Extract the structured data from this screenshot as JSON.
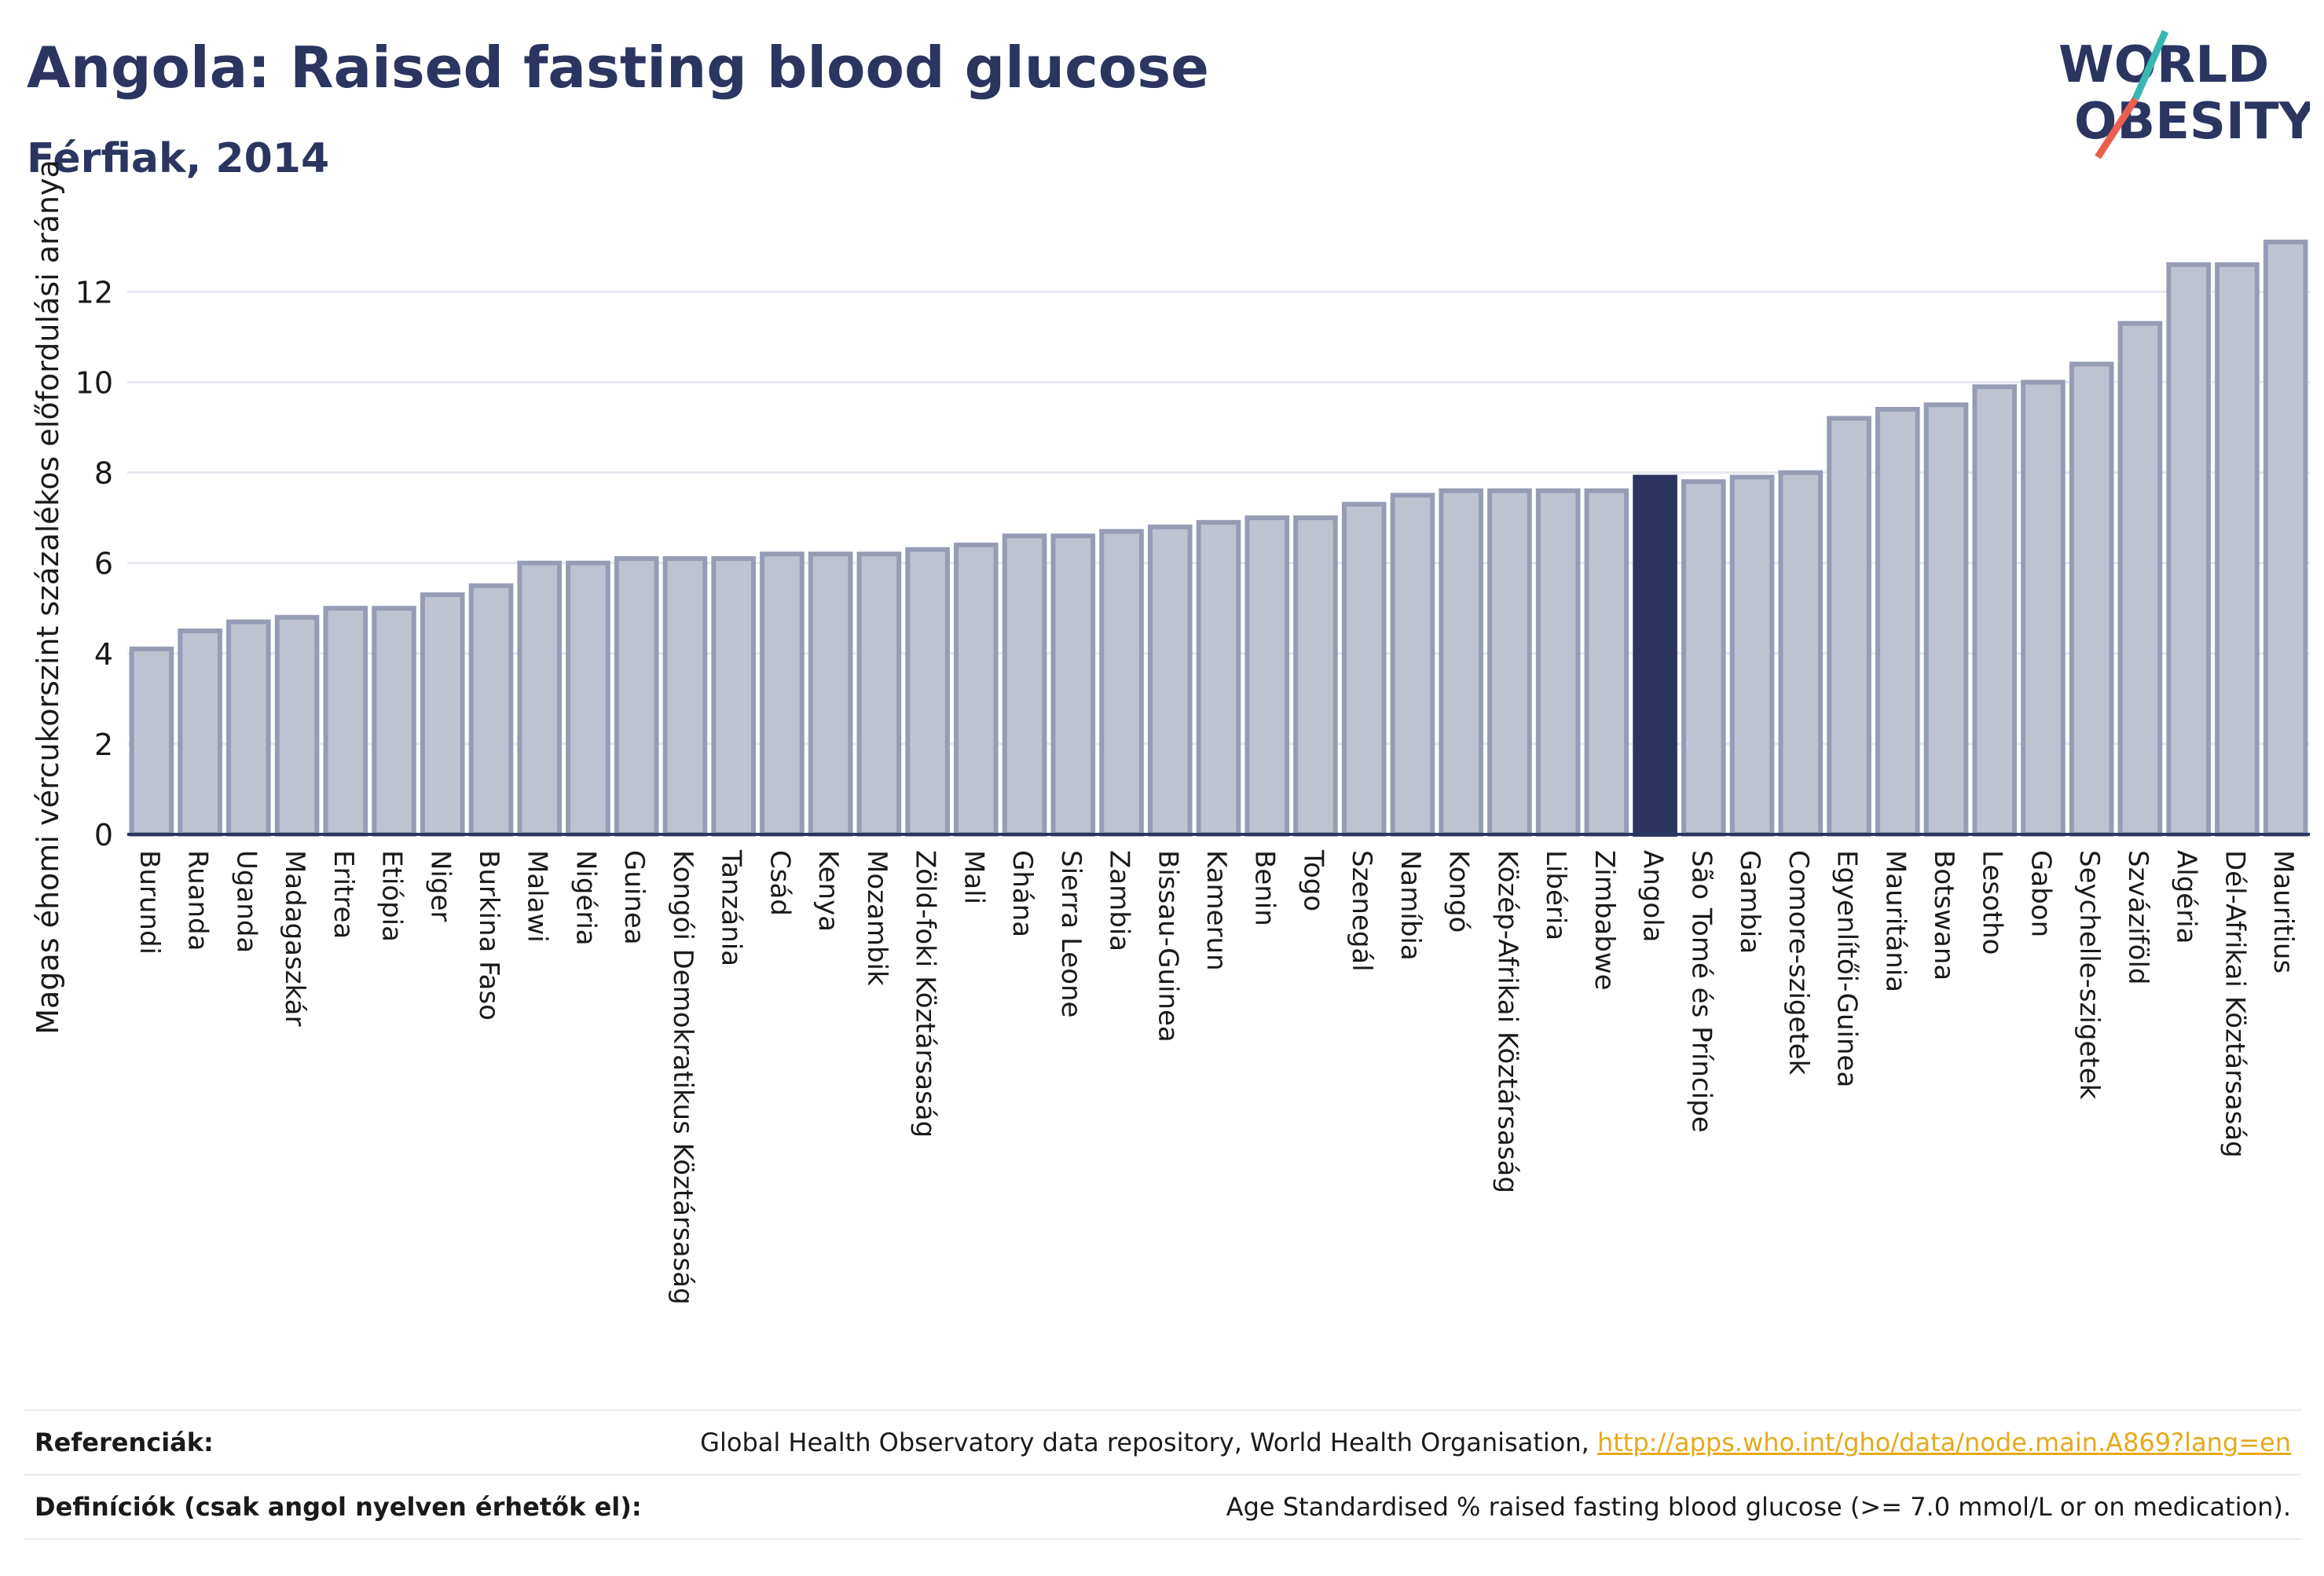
{
  "header": {
    "title": "Angola: Raised fasting blood glucose",
    "subtitle": "Férfiak, 2014"
  },
  "logo": {
    "line1": "WORLD",
    "line2": "OBESITY"
  },
  "colors": {
    "bar": "#bec2d1",
    "bar_stroke": "#969cb5",
    "highlight": "#2b3560",
    "grid": "#e6e8ef",
    "axis": "#2b3560",
    "logo_teal": "#3ab7b1",
    "logo_red": "#e8604e"
  },
  "chart_data": {
    "type": "bar",
    "ylabel": "Magas éhomi vércukorszint százalékos előfordulási aránya",
    "xlabel": "",
    "ylim": [
      0,
      13.5
    ],
    "yticks": [
      0,
      2,
      4,
      6,
      8,
      10,
      12
    ],
    "grid": true,
    "highlight": "Angola",
    "categories": [
      "Burundi",
      "Ruanda",
      "Uganda",
      "Madagaszkár",
      "Eritrea",
      "Etiópia",
      "Niger",
      "Burkina Faso",
      "Malawi",
      "Nigéria",
      "Guinea",
      "Kongói Demokratikus Köztársaság",
      "Tanzánia",
      "Csád",
      "Kenya",
      "Mozambik",
      "Zöld-foki Köztársaság",
      "Mali",
      "Ghána",
      "Sierra Leone",
      "Zambia",
      "Bissau-Guinea",
      "Kamerun",
      "Benin",
      "Togo",
      "Szenegál",
      "Namíbia",
      "Kongó",
      "Közép-Afrikai Köztársaság",
      "Libéria",
      "Zimbabwe",
      "Angola",
      "São Tomé és Príncipe",
      "Gambia",
      "Comore-szigetek",
      "Egyenlítői-Guinea",
      "Mauritánia",
      "Botswana",
      "Lesotho",
      "Gabon",
      "Seychelle-szigetek",
      "Szváziföld",
      "Algéria",
      "Dél-Afrikai Köztársaság",
      "Mauritius"
    ],
    "values": [
      4.1,
      4.5,
      4.7,
      4.8,
      5.0,
      5.0,
      5.3,
      5.5,
      6.0,
      6.0,
      6.1,
      6.1,
      6.1,
      6.2,
      6.2,
      6.2,
      6.3,
      6.4,
      6.6,
      6.6,
      6.7,
      6.8,
      6.9,
      7.0,
      7.0,
      7.3,
      7.5,
      7.6,
      7.6,
      7.6,
      7.6,
      7.9,
      7.8,
      7.9,
      8.0,
      9.2,
      9.4,
      9.5,
      9.9,
      10.0,
      10.4,
      11.3,
      12.6,
      12.6,
      13.1
    ]
  },
  "footer": {
    "references_label": "Referenciák:",
    "references_text": "Global Health Observatory data repository, World Health Organisation,",
    "references_link": "http://apps.who.int/gho/data/node.main.A869?lang=en",
    "definitions_label": "Definíciók (csak angol nyelven érhetők el):",
    "definitions_text": "Age Standardised % raised fasting blood glucose (>= 7.0 mmol/L or on medication)."
  }
}
